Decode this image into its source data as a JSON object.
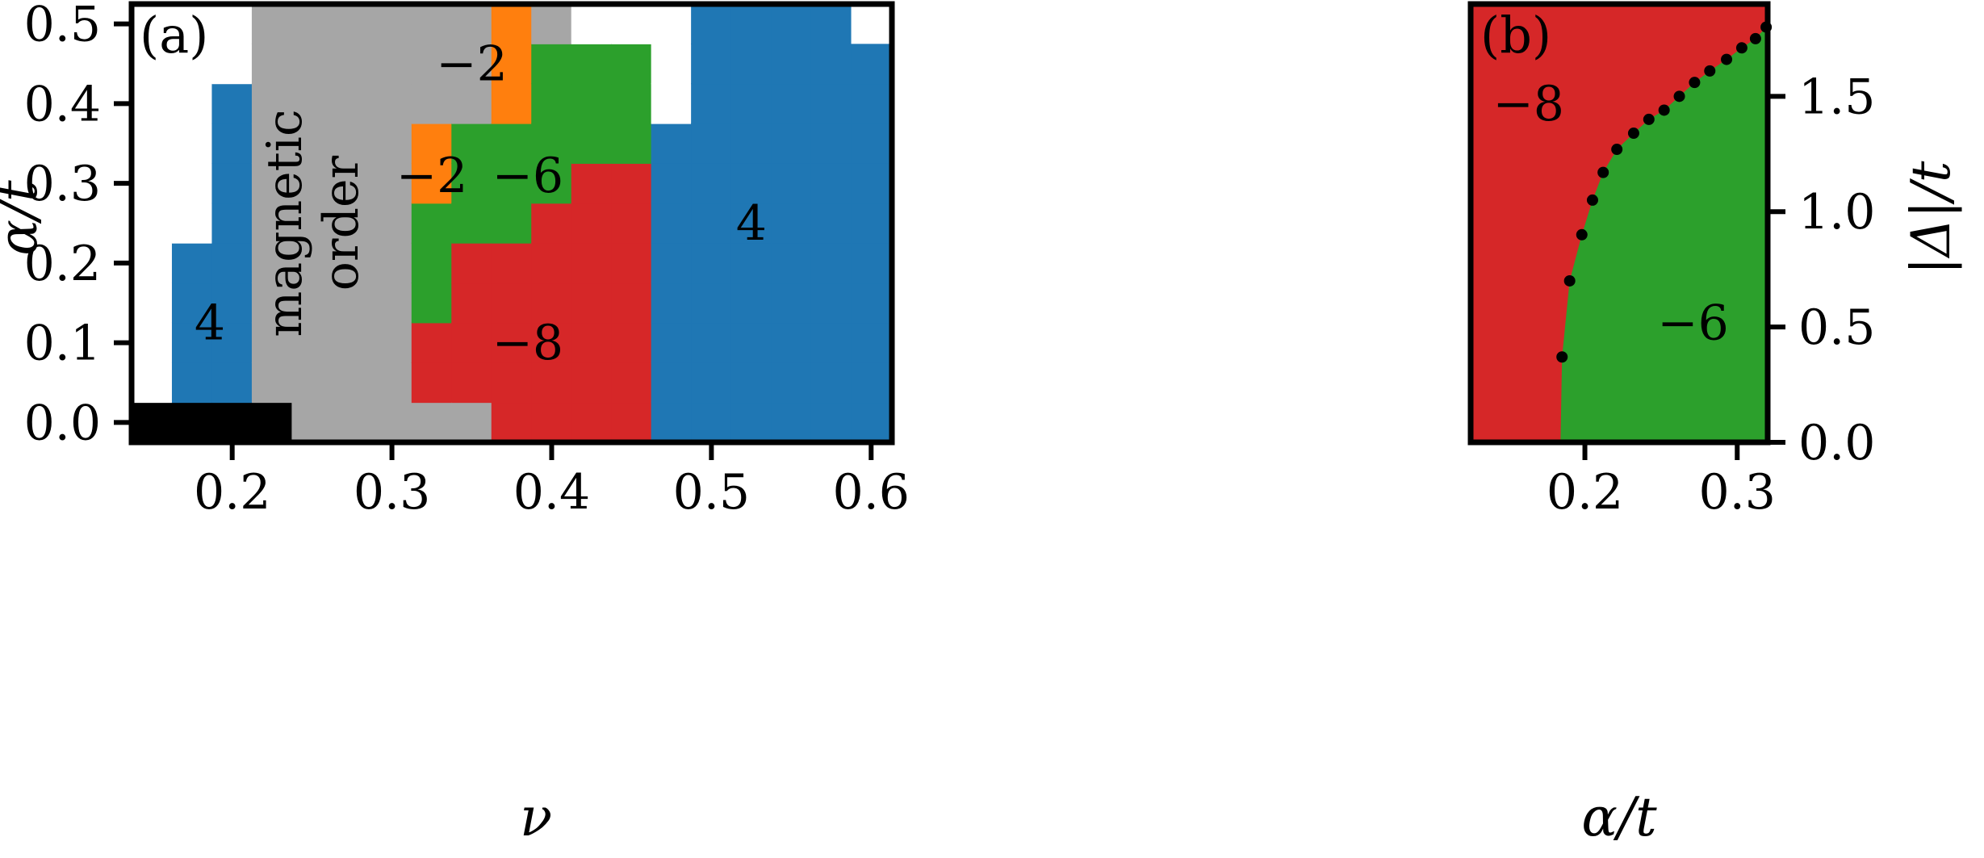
{
  "colors": {
    "blue": "#1f77b4",
    "gray": "#a6a6a6",
    "orange": "#ff7f0e",
    "green": "#2ca02c",
    "red": "#d62728",
    "black": "#000000",
    "white": "#ffffff",
    "dot": "#000000"
  },
  "chart_data": [
    {
      "type": "heatmap",
      "panel_label": "(a)",
      "xlabel": "ν",
      "ylabel": "α/t",
      "xlim": [
        0.137,
        0.613
      ],
      "ylim": [
        -0.025,
        0.525
      ],
      "xticks": [
        0.2,
        0.3,
        0.4,
        0.5,
        0.6
      ],
      "xtick_labels": [
        "0.2",
        "0.3",
        "0.4",
        "0.5",
        "0.6"
      ],
      "yticks": [
        0.0,
        0.1,
        0.2,
        0.3,
        0.4,
        0.5
      ],
      "ytick_labels": [
        "0.0",
        "0.1",
        "0.2",
        "0.3",
        "0.4",
        "0.5"
      ],
      "cell_width": 0.025,
      "cell_height": 0.05,
      "nu_start": 0.1375,
      "alpha_start": -0.025,
      "columns": [
        {
          "phases": [
            "black",
            "white",
            "white",
            "white",
            "white",
            "white",
            "white",
            "white",
            "white",
            "white",
            "white"
          ]
        },
        {
          "phases": [
            "black",
            "blue",
            "blue",
            "blue",
            "blue",
            "white",
            "white",
            "white",
            "white",
            "white",
            "white"
          ]
        },
        {
          "phases": [
            "black",
            "blue",
            "blue",
            "blue",
            "blue",
            "blue",
            "blue",
            "blue",
            "blue",
            "white",
            "white"
          ]
        },
        {
          "phases": [
            "black",
            "gray",
            "gray",
            "gray",
            "gray",
            "gray",
            "gray",
            "gray",
            "gray",
            "gray",
            "gray"
          ]
        },
        {
          "phases": [
            "gray",
            "gray",
            "gray",
            "gray",
            "gray",
            "gray",
            "gray",
            "gray",
            "gray",
            "gray",
            "gray"
          ]
        },
        {
          "phases": [
            "gray",
            "gray",
            "gray",
            "gray",
            "gray",
            "gray",
            "gray",
            "gray",
            "gray",
            "gray",
            "gray"
          ]
        },
        {
          "phases": [
            "gray",
            "gray",
            "gray",
            "gray",
            "gray",
            "gray",
            "gray",
            "gray",
            "gray",
            "gray",
            "gray"
          ]
        },
        {
          "phases": [
            "gray",
            "red",
            "red",
            "green",
            "green",
            "green",
            "orange",
            "orange",
            "gray",
            "gray",
            "gray"
          ]
        },
        {
          "phases": [
            "gray",
            "red",
            "red",
            "red",
            "red",
            "green",
            "green",
            "green",
            "gray",
            "gray",
            "gray"
          ]
        },
        {
          "phases": [
            "red",
            "red",
            "red",
            "red",
            "red",
            "green",
            "green",
            "green",
            "orange",
            "orange",
            "orange"
          ]
        },
        {
          "phases": [
            "red",
            "red",
            "red",
            "red",
            "red",
            "red",
            "green",
            "green",
            "green",
            "green",
            "gray"
          ]
        },
        {
          "phases": [
            "red",
            "red",
            "red",
            "red",
            "red",
            "red",
            "red",
            "green",
            "green",
            "green",
            "white"
          ]
        },
        {
          "phases": [
            "red",
            "red",
            "red",
            "red",
            "red",
            "red",
            "red",
            "green",
            "green",
            "green",
            "white"
          ]
        },
        {
          "phases": [
            "blue",
            "blue",
            "blue",
            "blue",
            "blue",
            "blue",
            "blue",
            "blue",
            "white",
            "white",
            "white"
          ]
        },
        {
          "phases": [
            "blue",
            "blue",
            "blue",
            "blue",
            "blue",
            "blue",
            "blue",
            "blue",
            "blue",
            "blue",
            "blue"
          ]
        },
        {
          "phases": [
            "blue",
            "blue",
            "blue",
            "blue",
            "blue",
            "blue",
            "blue",
            "blue",
            "blue",
            "blue",
            "blue"
          ]
        },
        {
          "phases": [
            "blue",
            "blue",
            "blue",
            "blue",
            "blue",
            "blue",
            "blue",
            "blue",
            "blue",
            "blue",
            "blue"
          ]
        },
        {
          "phases": [
            "blue",
            "blue",
            "blue",
            "blue",
            "blue",
            "blue",
            "blue",
            "blue",
            "blue",
            "blue",
            "blue"
          ]
        },
        {
          "phases": [
            "blue",
            "blue",
            "blue",
            "blue",
            "blue",
            "blue",
            "blue",
            "blue",
            "blue",
            "blue",
            "blue"
          ]
        }
      ],
      "top_right_white": {
        "nu": [
          0.5875,
          0.6125
        ],
        "alpha": [
          0.475,
          0.525
        ]
      },
      "annotations": [
        {
          "text": "4",
          "nu": 0.186,
          "alpha": 0.12
        },
        {
          "text": "magnetic",
          "nu": 0.253,
          "alpha": 0.25,
          "rotate": true,
          "line": 0
        },
        {
          "text": "order",
          "nu": 0.253,
          "alpha": 0.25,
          "rotate": true,
          "line": 1
        },
        {
          "text": "−2",
          "nu": 0.35,
          "alpha": 0.445
        },
        {
          "text": "−2",
          "nu": 0.325,
          "alpha": 0.305
        },
        {
          "text": "−6",
          "nu": 0.385,
          "alpha": 0.305
        },
        {
          "text": "4",
          "nu": 0.525,
          "alpha": 0.245
        },
        {
          "text": "−8",
          "nu": 0.385,
          "alpha": 0.095
        }
      ]
    },
    {
      "type": "area",
      "panel_label": "(b)",
      "xlabel": "α/t",
      "ylabel": "|Δ|/t",
      "xlim": [
        0.125,
        0.32
      ],
      "ylim": [
        0.0,
        1.9
      ],
      "xticks": [
        0.2,
        0.3
      ],
      "xtick_labels": [
        "0.2",
        "0.3"
      ],
      "yticks": [
        0.0,
        0.5,
        1.0,
        1.5
      ],
      "ytick_labels": [
        "0.0",
        "0.5",
        "1.0",
        "1.5"
      ],
      "series": [
        {
          "name": "",
          "x": [
            0.185,
            0.19,
            0.198,
            0.205,
            0.212,
            0.221,
            0.232,
            0.242,
            0.252,
            0.262,
            0.272,
            0.282,
            0.293,
            0.303,
            0.312,
            0.319
          ],
          "y": [
            0.37,
            0.7,
            0.9,
            1.05,
            1.17,
            1.27,
            1.34,
            1.4,
            1.44,
            1.5,
            1.56,
            1.61,
            1.66,
            1.71,
            1.75,
            1.8
          ]
        }
      ],
      "boundary_bottom_x": 0.184,
      "region_colors": {
        "left": "red",
        "right": "green"
      },
      "annotations": [
        {
          "text": "−8",
          "x": 0.163,
          "y": 1.45
        },
        {
          "text": "−6",
          "x": 0.271,
          "y": 0.5
        }
      ]
    }
  ]
}
